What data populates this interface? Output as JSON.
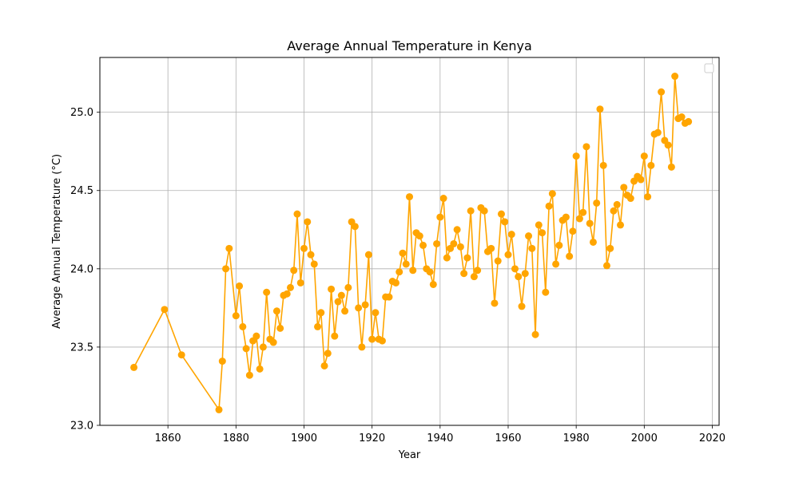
{
  "chart_data": {
    "type": "line",
    "title": "Average Annual Temperature in Kenya",
    "xlabel": "Year",
    "ylabel": "Average Annual Temperature (°C)",
    "xlim": [
      1840,
      2022
    ],
    "ylim": [
      23.0,
      25.35
    ],
    "xticks": [
      1860,
      1880,
      1900,
      1920,
      1940,
      1960,
      1980,
      2000,
      2020
    ],
    "yticks": [
      23.0,
      23.5,
      24.0,
      24.5,
      25.0
    ],
    "grid": true,
    "legend": "top-right",
    "series_color": "#FFA500",
    "series": [
      {
        "x": [
          1850,
          1859,
          1864,
          1875,
          1876,
          1877,
          1878,
          1880,
          1881,
          1882,
          1883,
          1884,
          1885,
          1886,
          1887,
          1888,
          1889,
          1890,
          1891,
          1892,
          1893,
          1894,
          1895,
          1896,
          1897,
          1898,
          1899,
          1900,
          1901,
          1902,
          1903,
          1904,
          1905,
          1906,
          1907,
          1908,
          1909,
          1910,
          1911,
          1912,
          1913,
          1914,
          1915,
          1916,
          1917,
          1918,
          1919,
          1920,
          1921,
          1922,
          1923,
          1924,
          1925,
          1926,
          1927,
          1928,
          1929,
          1930,
          1931,
          1932,
          1933,
          1934,
          1935,
          1936,
          1937,
          1938,
          1939,
          1940,
          1941,
          1942,
          1943,
          1944,
          1945,
          1946,
          1947,
          1948,
          1949,
          1950,
          1951,
          1952,
          1953,
          1954,
          1955,
          1956,
          1957,
          1958,
          1959,
          1960,
          1961,
          1962,
          1963,
          1964,
          1965,
          1966,
          1967,
          1968,
          1969,
          1970,
          1971,
          1972,
          1973,
          1974,
          1975,
          1976,
          1977,
          1978,
          1979,
          1980,
          1981,
          1982,
          1983,
          1984,
          1985,
          1986,
          1987,
          1988,
          1989,
          1990,
          1991,
          1992,
          1993,
          1994,
          1995,
          1996,
          1997,
          1998,
          1999,
          2000,
          2001,
          2002,
          2003,
          2004,
          2005,
          2006,
          2007,
          2008,
          2009,
          2010,
          2011,
          2012,
          2013
        ],
        "y": [
          23.37,
          23.74,
          23.45,
          23.1,
          23.41,
          24.0,
          24.13,
          23.7,
          23.89,
          23.63,
          23.49,
          23.32,
          23.54,
          23.57,
          23.36,
          23.5,
          23.85,
          23.55,
          23.53,
          23.73,
          23.62,
          23.83,
          23.84,
          23.88,
          23.99,
          24.35,
          23.91,
          24.13,
          24.3,
          24.09,
          24.03,
          23.63,
          23.72,
          23.38,
          23.46,
          23.87,
          23.57,
          23.79,
          23.83,
          23.73,
          23.88,
          24.3,
          24.27,
          23.75,
          23.5,
          23.77,
          24.09,
          23.55,
          23.72,
          23.55,
          23.54,
          23.82,
          23.82,
          23.92,
          23.91,
          23.98,
          24.1,
          24.03,
          24.46,
          23.99,
          24.23,
          24.21,
          24.15,
          24.0,
          23.98,
          23.9,
          24.16,
          24.33,
          24.45,
          24.07,
          24.13,
          24.16,
          24.25,
          24.14,
          23.97,
          24.07,
          24.37,
          23.95,
          23.99,
          24.39,
          24.37,
          24.11,
          24.13,
          23.78,
          24.05,
          24.35,
          24.3,
          24.09,
          24.22,
          24.0,
          23.95,
          23.76,
          23.97,
          24.21,
          24.13,
          23.58,
          24.28,
          24.23,
          23.85,
          24.4,
          24.48,
          24.03,
          24.15,
          24.31,
          24.33,
          24.08,
          24.24,
          24.72,
          24.32,
          24.36,
          24.78,
          24.29,
          24.17,
          24.42,
          25.02,
          24.66,
          24.02,
          24.13,
          24.37,
          24.41,
          24.28,
          24.52,
          24.47,
          24.45,
          24.56,
          24.59,
          24.57,
          24.72,
          24.46,
          24.66,
          24.86,
          24.87,
          25.13,
          24.82,
          24.79,
          24.65,
          25.23,
          24.96,
          24.97,
          24.93,
          24.94
        ]
      }
    ]
  }
}
